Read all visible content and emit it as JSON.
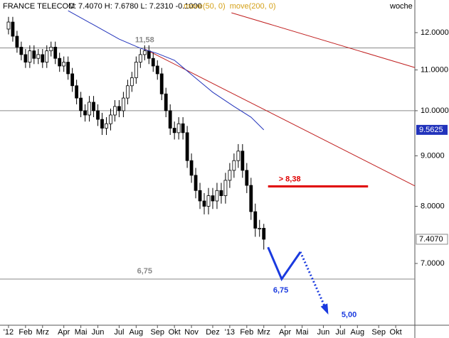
{
  "chart_data": {
    "type": "candlestick",
    "title": "FRANCE TELECOM",
    "header_stats": "C: 7.4070 H: 7.6780 L: 7.2310 -0.1000",
    "period": "woche",
    "log_y": true,
    "xlim": [
      -2,
      95.5
    ],
    "ylim": [
      6.06,
      12.95
    ],
    "xticks": [
      {
        "value": 0,
        "label": "'12"
      },
      {
        "value": 4,
        "label": "Feb"
      },
      {
        "value": 8,
        "label": "Mrz"
      },
      {
        "value": 13,
        "label": "Apr"
      },
      {
        "value": 17,
        "label": "Mai"
      },
      {
        "value": 21,
        "label": "Jun"
      },
      {
        "value": 26,
        "label": "Jul"
      },
      {
        "value": 30,
        "label": "Aug"
      },
      {
        "value": 35,
        "label": "Sep"
      },
      {
        "value": 39,
        "label": "Okt"
      },
      {
        "value": 43,
        "label": "Nov"
      },
      {
        "value": 48,
        "label": "Dez"
      },
      {
        "value": 52,
        "label": "'13"
      },
      {
        "value": 56,
        "label": "Feb"
      },
      {
        "value": 60,
        "label": "Mrz"
      },
      {
        "value": 65,
        "label": "Apr"
      },
      {
        "value": 69,
        "label": "Mai"
      },
      {
        "value": 74,
        "label": "Jun"
      },
      {
        "value": 78,
        "label": "Jul"
      },
      {
        "value": 82,
        "label": "Aug"
      },
      {
        "value": 87,
        "label": "Sep"
      },
      {
        "value": 91,
        "label": "Okt"
      }
    ],
    "yticks": [
      {
        "value": 7,
        "label": "7.0000"
      },
      {
        "value": 8,
        "label": "8.0000"
      },
      {
        "value": 9,
        "label": "9.0000"
      },
      {
        "value": 10,
        "label": "10.0000"
      },
      {
        "value": 11,
        "label": "11.0000"
      },
      {
        "value": 12,
        "label": "12.0000"
      }
    ],
    "candles": {
      "up_color": "#ffffff",
      "down_color": "#000000",
      "x": [
        0,
        1,
        2,
        3,
        4,
        5,
        6,
        7,
        8,
        9,
        10,
        11,
        12,
        13,
        14,
        15,
        16,
        17,
        18,
        19,
        20,
        21,
        22,
        23,
        24,
        25,
        26,
        27,
        28,
        29,
        30,
        31,
        32,
        33,
        34,
        35,
        36,
        37,
        38,
        39,
        40,
        41,
        42,
        43,
        44,
        45,
        46,
        47,
        48,
        49,
        50,
        51,
        52,
        53,
        54,
        55,
        56,
        57,
        58,
        59,
        60
      ],
      "open": [
        12.1,
        12.3,
        11.9,
        11.6,
        11.4,
        11.2,
        11.5,
        11.3,
        11.4,
        11.2,
        11.5,
        11.6,
        11.3,
        11.1,
        11.2,
        10.9,
        10.6,
        10.3,
        10.0,
        9.9,
        10.2,
        10.0,
        9.8,
        9.6,
        9.7,
        9.9,
        10.1,
        10.0,
        10.3,
        10.6,
        10.8,
        11.2,
        11.4,
        11.5,
        11.3,
        11.1,
        10.9,
        10.4,
        10.0,
        9.6,
        9.5,
        9.7,
        9.5,
        8.9,
        8.6,
        8.3,
        8.1,
        8.0,
        8.2,
        8.1,
        8.3,
        8.2,
        8.5,
        8.7,
        8.9,
        9.1,
        8.7,
        8.4,
        7.9,
        7.6,
        7.6
      ],
      "high": [
        12.45,
        12.45,
        12.05,
        11.75,
        11.55,
        11.65,
        11.65,
        11.55,
        11.55,
        11.65,
        11.75,
        11.75,
        11.45,
        11.35,
        11.35,
        11.05,
        10.75,
        10.45,
        10.15,
        10.35,
        10.35,
        10.15,
        9.95,
        9.85,
        10.05,
        10.25,
        10.25,
        10.45,
        10.75,
        10.95,
        11.35,
        11.55,
        11.65,
        11.65,
        11.45,
        11.25,
        11.05,
        10.55,
        10.15,
        9.75,
        9.85,
        9.85,
        9.65,
        9.05,
        8.75,
        8.45,
        8.25,
        8.35,
        8.35,
        8.45,
        8.45,
        8.65,
        8.85,
        9.05,
        9.25,
        9.25,
        8.85,
        8.55,
        8.05,
        7.75,
        7.678
      ],
      "low": [
        11.95,
        11.75,
        11.45,
        11.25,
        11.05,
        11.05,
        11.15,
        11.15,
        11.05,
        11.05,
        11.35,
        11.15,
        10.95,
        10.95,
        10.75,
        10.45,
        10.15,
        9.85,
        9.75,
        9.75,
        9.85,
        9.65,
        9.45,
        9.45,
        9.55,
        9.75,
        9.85,
        9.85,
        10.15,
        10.45,
        10.65,
        11.05,
        11.25,
        11.15,
        10.95,
        10.75,
        10.25,
        9.85,
        9.45,
        9.35,
        9.35,
        9.35,
        8.75,
        8.45,
        8.15,
        7.95,
        7.85,
        7.85,
        7.95,
        7.95,
        8.05,
        8.05,
        8.35,
        8.55,
        8.75,
        8.55,
        8.25,
        7.75,
        7.45,
        7.45,
        7.231
      ],
      "close": [
        12.3,
        11.9,
        11.6,
        11.4,
        11.2,
        11.5,
        11.3,
        11.4,
        11.2,
        11.5,
        11.6,
        11.3,
        11.1,
        11.2,
        10.9,
        10.6,
        10.3,
        10.0,
        9.9,
        10.2,
        10.0,
        9.8,
        9.6,
        9.7,
        9.9,
        10.1,
        10.0,
        10.3,
        10.6,
        10.8,
        11.2,
        11.4,
        11.5,
        11.3,
        11.1,
        10.9,
        10.4,
        10.0,
        9.6,
        9.5,
        9.7,
        9.5,
        8.9,
        8.6,
        8.3,
        8.1,
        8.0,
        8.2,
        8.1,
        8.3,
        8.2,
        8.5,
        8.7,
        8.9,
        9.1,
        8.7,
        8.4,
        7.9,
        7.6,
        7.6,
        7.407
      ]
    },
    "last_close": {
      "value": 7.407,
      "label": "7.4070"
    },
    "legend_color": "#d4a017",
    "moving_averages": [
      {
        "name": "move(50, 0)",
        "color": "#2233bb",
        "x": [
          14,
          20,
          26,
          31,
          35,
          39,
          43,
          48,
          53,
          57,
          60
        ],
        "values": [
          12.63,
          12.22,
          11.82,
          11.57,
          11.43,
          11.25,
          10.88,
          10.44,
          10.1,
          9.85,
          9.5625
        ]
      },
      {
        "name": "move(200, 0)",
        "color": "#2233bb"
      }
    ],
    "levels": [
      {
        "value": 11.58,
        "label": "11,58",
        "color": "#8a8a8a"
      },
      {
        "value": 10,
        "color": "#8a8a8a"
      },
      {
        "value": 6.75,
        "label": "6,75",
        "color": "#8a8a8a"
      }
    ],
    "trendlines": [
      {
        "x": [
          32,
          95.5
        ],
        "values": [
          11.55,
          8.39
        ],
        "color": "#c02020"
      },
      {
        "x": [
          52.4,
          95.5
        ],
        "values": [
          12.57,
          11.06
        ],
        "color": "#c02020"
      }
    ],
    "target": {
      "value": 8.38,
      "label": "> 8,38",
      "color": "#e00000",
      "x": [
        61,
        84.5
      ]
    },
    "projection": {
      "color": "#1a3adf",
      "x": [
        61,
        64.2,
        68.6
      ],
      "values": [
        7.27,
        6.75,
        7.19
      ],
      "dotted_x": [
        68.6,
        74.9
      ],
      "dotted_values": [
        7.19,
        6.25
      ],
      "labels": [
        "6,75",
        "5,00"
      ]
    }
  }
}
